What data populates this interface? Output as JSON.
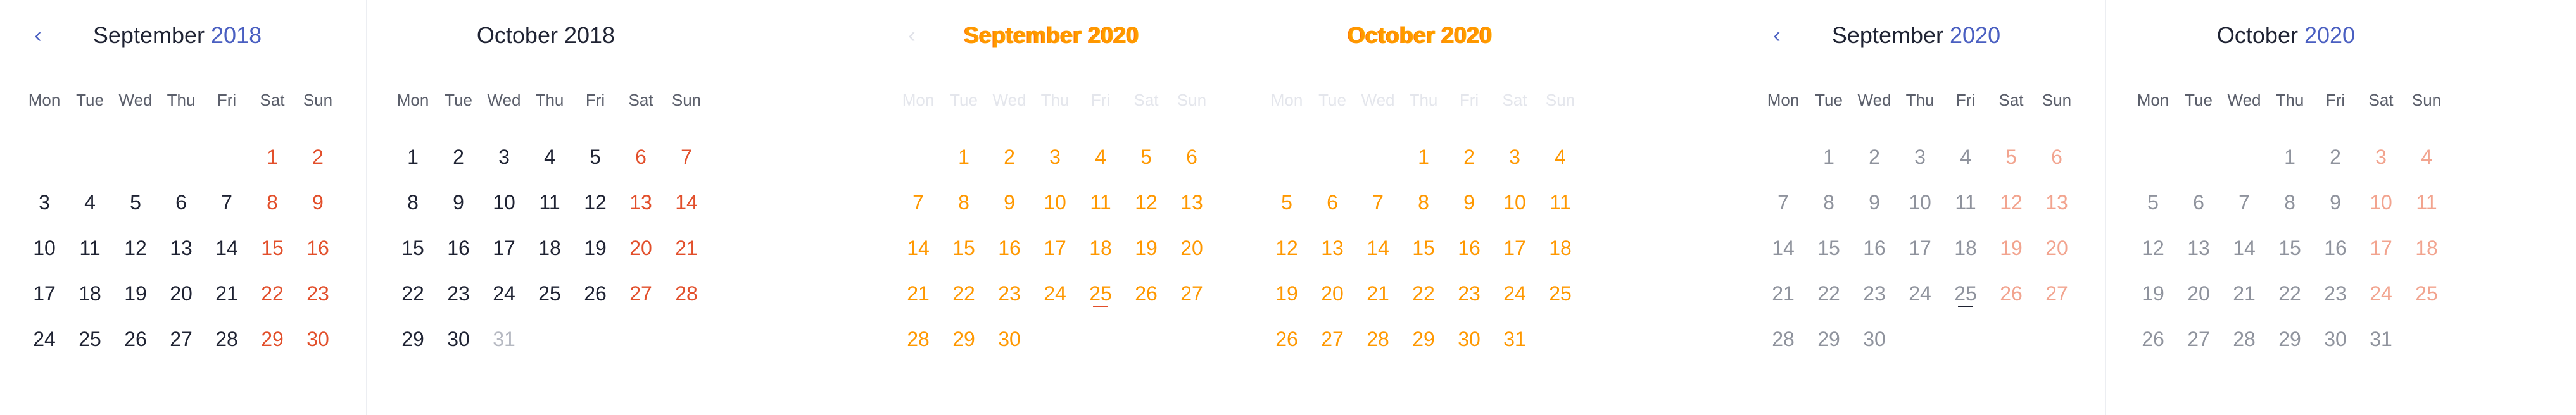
{
  "weekdays": [
    "Mon",
    "Tue",
    "Wed",
    "Thu",
    "Fri",
    "Sat",
    "Sun"
  ],
  "prev_icon": "chevron-left-icon",
  "colors": {
    "accent": "#4a5fc1",
    "weekend": "#e24f2b",
    "text": "#1f2333",
    "ghost": "#ff9800"
  },
  "panels": [
    {
      "month": "September",
      "year": "2018",
      "start": 5,
      "days": 30,
      "out_days": [],
      "today": null
    },
    {
      "month": "October",
      "year": "2018",
      "start": 0,
      "days": 30,
      "out_days": [
        31
      ],
      "today": null
    },
    {
      "month": "September",
      "year": "2020",
      "start": 1,
      "days": 30,
      "out_days": [],
      "today": 25
    },
    {
      "month": "October",
      "year": "2020",
      "start": 3,
      "days": 31,
      "out_days": [],
      "today": null
    },
    {
      "month": "September",
      "year": "2020",
      "start": 1,
      "days": 30,
      "out_days": [],
      "today": 25
    },
    {
      "month": "October",
      "year": "2020",
      "start": 3,
      "days": 30,
      "out_days": [
        31
      ],
      "today": null
    }
  ]
}
